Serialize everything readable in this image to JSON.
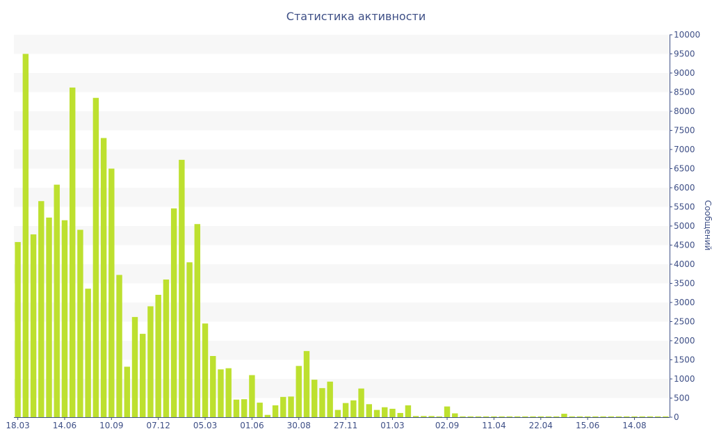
{
  "chart_data": {
    "type": "bar",
    "title": "Статистика активности",
    "xlabel": "",
    "ylabel": "Сообщений",
    "ylim": [
      0,
      10000
    ],
    "yticks": [
      0,
      500,
      1000,
      1500,
      2000,
      2500,
      3000,
      3500,
      4000,
      4500,
      5000,
      5500,
      6000,
      6500,
      7000,
      7500,
      8000,
      8500,
      9000,
      9500,
      10000
    ],
    "x_tick_labels": [
      "18.03",
      "14.06",
      "10.09",
      "07.12",
      "05.03",
      "01.06",
      "30.08",
      "27.11",
      "01.03",
      "02.09",
      "11.04",
      "22.04",
      "15.06",
      "14.08"
    ],
    "x_tick_bar_index": [
      0,
      6,
      12,
      18,
      24,
      30,
      36,
      42,
      48,
      55,
      61,
      67,
      73,
      79
    ],
    "y_axis_position": "right",
    "grid": "alternating horizontal bands",
    "bar_color": "#bde02f",
    "values": [
      4580,
      9500,
      4780,
      5650,
      5220,
      6080,
      5150,
      8620,
      4900,
      3360,
      8350,
      7300,
      6500,
      3720,
      1320,
      2620,
      2180,
      2900,
      3200,
      3600,
      5460,
      6730,
      4050,
      5050,
      2450,
      1600,
      1250,
      1280,
      460,
      470,
      1100,
      380,
      60,
      310,
      530,
      540,
      1340,
      1730,
      980,
      760,
      930,
      190,
      370,
      440,
      750,
      340,
      190,
      260,
      220,
      110,
      310,
      30,
      30,
      30,
      20,
      280,
      100,
      20,
      20,
      20,
      20,
      20,
      20,
      20,
      20,
      20,
      20,
      20,
      20,
      20,
      90,
      20,
      20,
      20,
      20,
      20,
      20,
      20,
      20,
      20,
      20,
      20,
      20,
      20
    ]
  }
}
